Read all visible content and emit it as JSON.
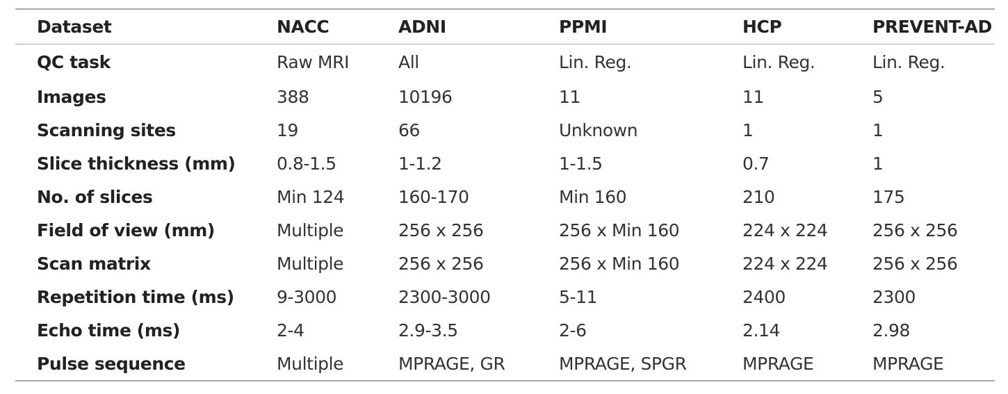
{
  "table": {
    "headers": [
      "Dataset",
      "NACC",
      "ADNI",
      "PPMI",
      "HCP",
      "PREVENT-AD"
    ],
    "rows": [
      [
        "QC task",
        "Raw MRI",
        "All",
        "Lin. Reg.",
        "Lin. Reg.",
        "Lin. Reg."
      ],
      [
        "Images",
        "388",
        "10196",
        "11",
        "11",
        "5"
      ],
      [
        "Scanning sites",
        "19",
        "66",
        "Unknown",
        "1",
        "1"
      ],
      [
        "Slice thickness (mm)",
        "0.8-1.5",
        "1-1.2",
        "1-1.5",
        "0.7",
        "1"
      ],
      [
        "No. of slices",
        "Min 124",
        "160-170",
        "Min 160",
        "210",
        "175"
      ],
      [
        "Field of view (mm)",
        "Multiple",
        "256 x 256",
        "256 x Min 160",
        "224 x 224",
        "256 x 256"
      ],
      [
        "Scan matrix",
        "Multiple",
        "256 x 256",
        "256 x Min 160",
        "224 x 224",
        "256 x 256"
      ],
      [
        "Repetition time (ms)",
        "9-3000",
        "2300-3000",
        "5-11",
        "2400",
        "2300"
      ],
      [
        "Echo time (ms)",
        "2-4",
        "2.9-3.5",
        "2-6",
        "2.14",
        "2.98"
      ],
      [
        "Pulse sequence",
        "Multiple",
        "MPRAGE, GR",
        "MPRAGE, SPGR",
        "MPRAGE",
        "MPRAGE"
      ]
    ]
  }
}
